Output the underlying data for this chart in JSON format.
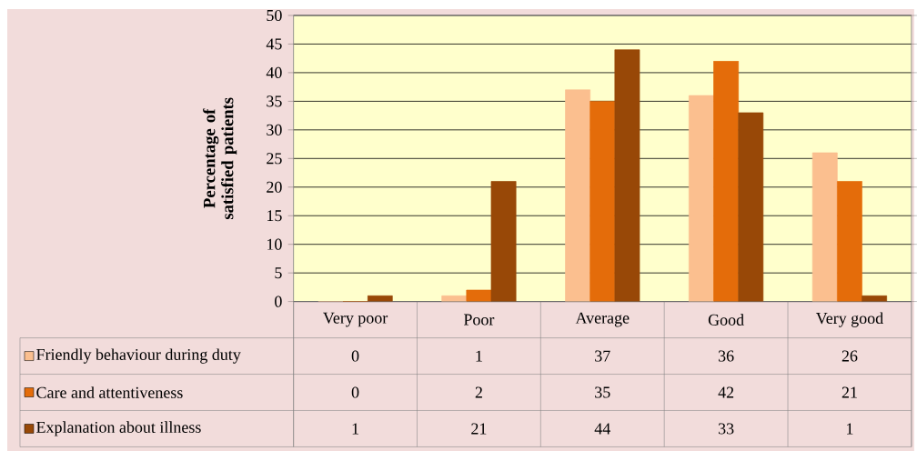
{
  "chart_data": {
    "type": "bar",
    "ylabel": "Percentage of satisfied patients",
    "categories": [
      "Very poor",
      "Poor",
      "Average",
      "Good",
      "Very good"
    ],
    "series": [
      {
        "name": "Friendly behaviour during duty",
        "color": "#fbbf8f",
        "values": [
          0,
          1,
          37,
          36,
          26
        ]
      },
      {
        "name": "Care and attentiveness",
        "color": "#e46c0a",
        "values": [
          0,
          2,
          35,
          42,
          21
        ]
      },
      {
        "name": "Explanation about illness",
        "color": "#984807",
        "values": [
          1,
          21,
          44,
          33,
          1
        ]
      }
    ],
    "ylim": [
      0,
      50
    ],
    "yticks": [
      0,
      5,
      10,
      15,
      20,
      25,
      30,
      35,
      40,
      45,
      50
    ],
    "grid": "y",
    "legend": "bottom",
    "data_labels": true
  }
}
